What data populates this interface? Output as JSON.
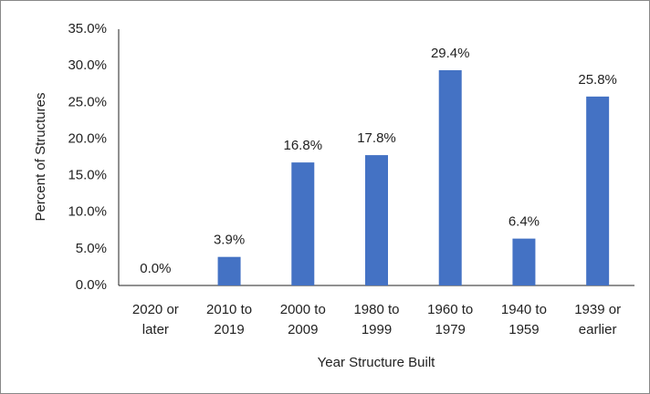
{
  "chart_data": {
    "type": "bar",
    "categories": [
      "2020 or later",
      "2010 to 2019",
      "2000 to 2009",
      "1980 to 1999",
      "1960 to 1979",
      "1940 to 1959",
      "1939 or earlier"
    ],
    "values": [
      0.0,
      3.9,
      16.8,
      17.8,
      29.4,
      6.4,
      25.8
    ],
    "value_labels": [
      "0.0%",
      "3.9%",
      "16.8%",
      "17.8%",
      "29.4%",
      "6.4%",
      "25.8%"
    ],
    "color": "#4472c4",
    "ylim": [
      0,
      35
    ],
    "yticks": [
      {
        "value": 0,
        "label": "0.0%"
      },
      {
        "value": 5,
        "label": "5.0%"
      },
      {
        "value": 10,
        "label": "10.0%"
      },
      {
        "value": 15,
        "label": "15.0%"
      },
      {
        "value": 20,
        "label": "20.0%"
      },
      {
        "value": 25,
        "label": "25.0%"
      },
      {
        "value": 30,
        "label": "30.0%"
      },
      {
        "value": 35,
        "label": "35.0%"
      }
    ],
    "xlabel": "Year Structure Built",
    "ylabel": "Percent of Structures",
    "grid": false
  }
}
